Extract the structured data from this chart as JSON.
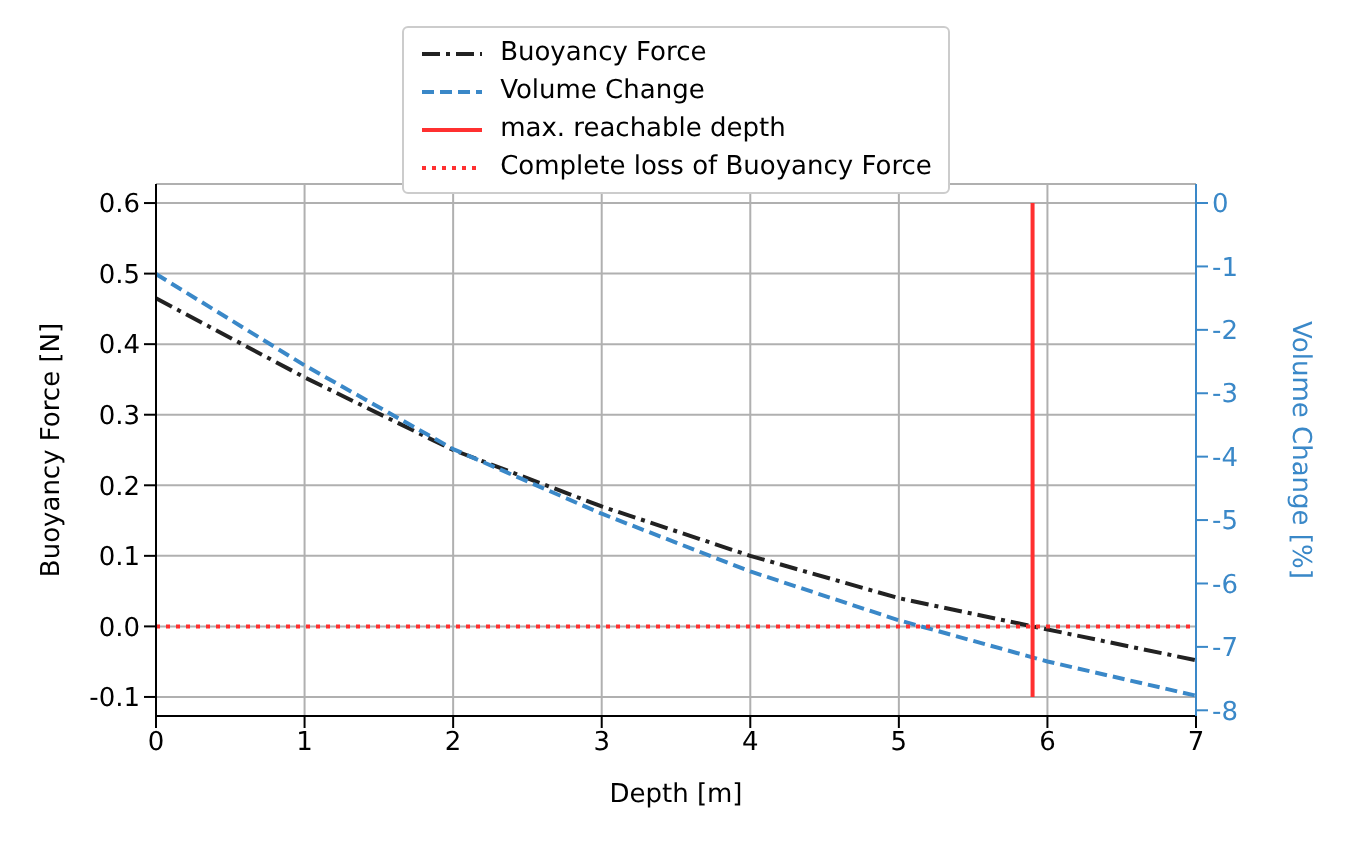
{
  "chart_data": {
    "type": "line",
    "xlabel": "Depth [m]",
    "ylabel": "Buoyancy Force [N]",
    "y2label": "Volume Change [%]",
    "xlim": [
      0,
      7
    ],
    "xticks": [
      0,
      1,
      2,
      3,
      4,
      5,
      6,
      7
    ],
    "ylim": [
      -0.127,
      0.627
    ],
    "yticks": [
      {
        "value": -0.1,
        "label": "-0.1"
      },
      {
        "value": 0,
        "label": "0.0"
      },
      {
        "value": 0.1,
        "label": "0.1"
      },
      {
        "value": 0.2,
        "label": "0.2"
      },
      {
        "value": 0.3,
        "label": "0.3"
      },
      {
        "value": 0.4,
        "label": "0.4"
      },
      {
        "value": 0.5,
        "label": "0.5"
      },
      {
        "value": 0.6,
        "label": "0.6"
      }
    ],
    "y2lim": [
      -8.09,
      0.3
    ],
    "y2ticks": [
      -8,
      -7,
      -6,
      -5,
      -4,
      -3,
      -2,
      -1,
      0
    ],
    "grid": true,
    "legend": "top",
    "series": [
      {
        "name": "Buoyancy Force",
        "color": "#222222",
        "line_style": "dashdot",
        "x": [
          0,
          1,
          2,
          3,
          4,
          5,
          5.9,
          7
        ],
        "values": [
          0.465,
          0.353,
          0.25,
          0.17,
          0.1,
          0.04,
          0.0,
          -0.048
        ]
      },
      {
        "name": "Volume Change",
        "color": "#3a88c8",
        "line_style": "dashed",
        "axis": "y2",
        "x": [
          0,
          1,
          2,
          3,
          4,
          5,
          6,
          7
        ],
        "values": [
          -1.12,
          -2.56,
          -3.88,
          -4.9,
          -5.81,
          -6.58,
          -7.23,
          -7.77
        ]
      },
      {
        "name": "max. reachable depth",
        "color": "#ff3030",
        "line_style": "solid",
        "x": [
          5.9,
          5.9
        ],
        "values": [
          -0.1,
          0.6
        ]
      },
      {
        "name": "Complete loss of Buoyancy Force",
        "color": "#ff3030",
        "line_style": "dotted",
        "x": [
          0,
          7
        ],
        "values": [
          0,
          0
        ]
      }
    ]
  }
}
